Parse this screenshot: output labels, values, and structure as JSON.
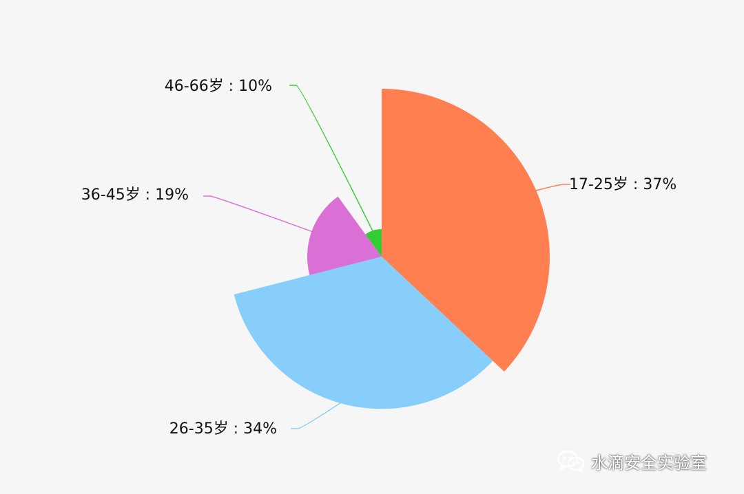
{
  "chart_data": {
    "type": "pie",
    "variant": "rose",
    "categories": [
      "17-25岁",
      "26-35岁",
      "36-45岁",
      "46-66岁"
    ],
    "values": [
      37,
      34,
      19,
      10
    ],
    "labels": [
      "17-25岁 : 37%",
      "26-35岁 : 34%",
      "36-45岁 : 19%",
      "46-66岁 : 10%"
    ],
    "colors": [
      "#ff7f50",
      "#87cefa",
      "#da70d6",
      "#32cd32"
    ],
    "start_angle": "12 o'clock",
    "direction": "clockwise"
  },
  "watermark": {
    "icon": "wechat-icon",
    "text": "水滴安全实验室"
  }
}
